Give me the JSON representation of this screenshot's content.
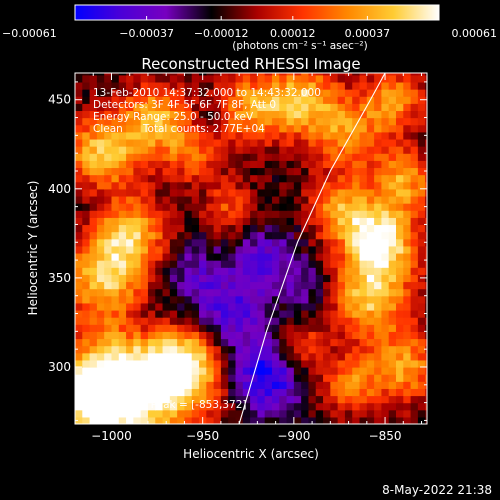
{
  "chart_data": {
    "type": "heatmap",
    "title": "Reconstructed RHESSI Image",
    "xlabel": "Heliocentric X (arcsec)",
    "ylabel": "Heliocentric Y (arcsec)",
    "xlim": [
      -1020,
      -827
    ],
    "ylim": [
      268,
      465
    ],
    "x_ticks": [
      -1000,
      -950,
      -900,
      -850
    ],
    "y_ticks": [
      300,
      350,
      400,
      450
    ],
    "x_tick_labels": [
      "−1000",
      "−950",
      "−900",
      "−850"
    ],
    "y_tick_labels": [
      "300",
      "350",
      "400",
      "450"
    ],
    "colorbar": {
      "range": [
        -0.00061,
        0.00061
      ],
      "ticks": [
        -0.00061,
        -0.00037,
        -0.00012,
        0.00012,
        0.00037,
        0.00061
      ],
      "tick_labels": [
        "−0.00061",
        "−0.00037",
        "−0.00012",
        "0.00012",
        "0.00037",
        "0.00061"
      ],
      "units": "(photons cm⁻² s⁻¹ asec⁻²)",
      "colormap": [
        "#0000ff",
        "#4a00d8",
        "#7700c0",
        "#000000",
        "#aa0000",
        "#ff3300",
        "#ff8800",
        "#ffcc33",
        "#ffffff"
      ]
    },
    "annotations": [
      "13-Feb-2010 14:37:32.000 to 14:43:32.000",
      "Detectors: 3F 4F 5F 6F 7F 8F, Att 0",
      "Energy Range: 25.0 - 50.0 keV",
      "Clean      Total counts: 2.77E+04"
    ],
    "peak_label": "Position of Peak = [-853,372]",
    "peak": [
      -853,
      372
    ],
    "limb_curve": [
      [
        -930,
        268
      ],
      [
        -915,
        320
      ],
      [
        -898,
        370
      ],
      [
        -880,
        410
      ],
      [
        -858,
        450
      ],
      [
        -850,
        465
      ]
    ],
    "blobs": [
      {
        "x": -985,
        "y": 290,
        "r": 25,
        "v": 0.00061
      },
      {
        "x": -1010,
        "y": 285,
        "r": 15,
        "v": 0.00055
      },
      {
        "x": -960,
        "y": 300,
        "r": 14,
        "v": 0.0004
      },
      {
        "x": -1005,
        "y": 350,
        "r": 16,
        "v": 0.0004
      },
      {
        "x": -990,
        "y": 375,
        "r": 14,
        "v": 0.00042
      },
      {
        "x": -1005,
        "y": 420,
        "r": 15,
        "v": 0.00045
      },
      {
        "x": -975,
        "y": 440,
        "r": 14,
        "v": 0.00038
      },
      {
        "x": -955,
        "y": 420,
        "r": 12,
        "v": 0.00022
      },
      {
        "x": -925,
        "y": 445,
        "r": 14,
        "v": 0.00035
      },
      {
        "x": -895,
        "y": 450,
        "r": 14,
        "v": 0.00042
      },
      {
        "x": -870,
        "y": 430,
        "r": 14,
        "v": 0.0003
      },
      {
        "x": -845,
        "y": 450,
        "r": 12,
        "v": 0.00032
      },
      {
        "x": -840,
        "y": 405,
        "r": 12,
        "v": 0.00035
      },
      {
        "x": -853,
        "y": 372,
        "r": 14,
        "v": 0.00061
      },
      {
        "x": -858,
        "y": 340,
        "r": 16,
        "v": 0.00045
      },
      {
        "x": -875,
        "y": 390,
        "r": 12,
        "v": 0.0003
      },
      {
        "x": -840,
        "y": 300,
        "r": 14,
        "v": 0.00035
      },
      {
        "x": -870,
        "y": 290,
        "r": 11,
        "v": 0.00028
      },
      {
        "x": -895,
        "y": 310,
        "r": 10,
        "v": 0.0002
      },
      {
        "x": -935,
        "y": 390,
        "r": 10,
        "v": 0.00018
      },
      {
        "x": -915,
        "y": 360,
        "r": 12,
        "v": -0.0004
      },
      {
        "x": -935,
        "y": 330,
        "r": 14,
        "v": -0.00045
      },
      {
        "x": -915,
        "y": 295,
        "r": 14,
        "v": -0.0006
      },
      {
        "x": -945,
        "y": 440,
        "r": 10,
        "v": -0.0003
      },
      {
        "x": -955,
        "y": 350,
        "r": 12,
        "v": -0.00035
      },
      {
        "x": -890,
        "y": 345,
        "r": 10,
        "v": -0.0003
      },
      {
        "x": -980,
        "y": 325,
        "r": 10,
        "v": -0.0003
      },
      {
        "x": -1010,
        "y": 395,
        "r": 8,
        "v": -0.0002
      }
    ]
  },
  "timestamp": "8-May-2022 21:38"
}
